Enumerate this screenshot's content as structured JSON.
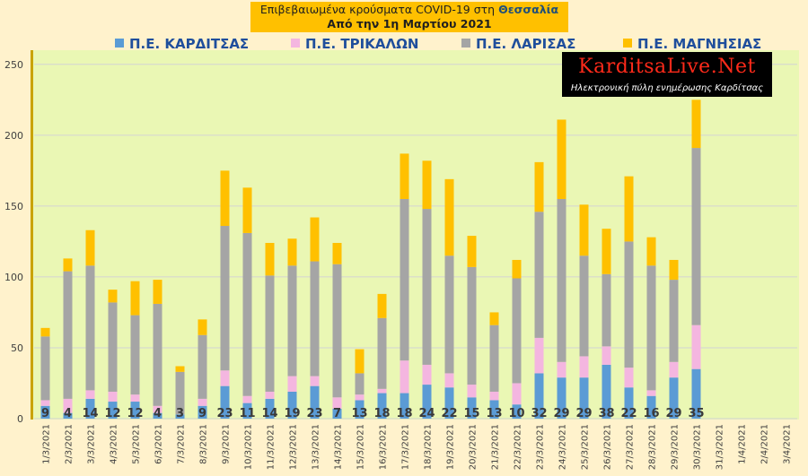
{
  "title_line1_prefix": "Επιβεβαιωμένα κρούσματα COVID-19 στη ",
  "title_line1_region": "Θεσσαλία",
  "title_line2": "Από την 1η Μαρτίου 2021",
  "logo": {
    "brand": "KarditsaLive.Net",
    "tagline": "Ηλεκτρονική πύλη ενημέρωσης Καρδίτσας"
  },
  "chart_data": {
    "type": "bar",
    "stacked": true,
    "ylim": [
      0,
      260
    ],
    "yticks": [
      "0",
      "50",
      "100",
      "150",
      "200",
      "250"
    ],
    "grid": true,
    "legend_position": "top",
    "categories": [
      "1/3/2021",
      "2/3/2021",
      "3/3/2021",
      "4/3/2021",
      "5/3/2021",
      "6/3/2021",
      "7/3/2021",
      "8/3/2021",
      "9/3/2021",
      "10/3/2021",
      "11/3/2021",
      "12/3/2021",
      "13/3/2021",
      "14/3/2021",
      "15/3/2021",
      "16/3/2021",
      "17/3/2021",
      "18/3/2021",
      "19/3/2021",
      "20/3/2021",
      "21/3/2021",
      "22/3/2021",
      "23/3/2021",
      "24/3/2021",
      "25/3/2021",
      "26/3/2021",
      "27/3/2021",
      "28/3/2021",
      "29/3/2021",
      "30/3/2021",
      "31/3/2021",
      "1/4/2021",
      "2/4/2021",
      "3/4/2021"
    ],
    "series": [
      {
        "name": "Π.Ε. ΚΑΡΔΙΤΣΑΣ",
        "color": "#5b9bd5",
        "values": [
          9,
          4,
          14,
          12,
          12,
          4,
          3,
          9,
          23,
          11,
          14,
          19,
          23,
          7,
          13,
          18,
          18,
          24,
          22,
          15,
          13,
          10,
          32,
          29,
          29,
          38,
          22,
          16,
          29,
          35,
          0,
          0,
          0,
          0
        ]
      },
      {
        "name": "Π.Ε. ΤΡΙΚΑΛΩΝ",
        "color": "#f4b6e0",
        "values": [
          4,
          10,
          6,
          7,
          5,
          5,
          0,
          5,
          11,
          5,
          5,
          11,
          7,
          8,
          4,
          3,
          23,
          14,
          10,
          9,
          6,
          15,
          25,
          11,
          15,
          13,
          14,
          4,
          11,
          31,
          0,
          0,
          0,
          0
        ]
      },
      {
        "name": "Π.Ε. ΛΑΡΙΣΑΣ",
        "color": "#a5a5a5",
        "values": [
          45,
          90,
          88,
          63,
          56,
          72,
          30,
          45,
          102,
          115,
          82,
          78,
          81,
          94,
          15,
          50,
          114,
          110,
          83,
          83,
          47,
          74,
          89,
          115,
          71,
          51,
          89,
          88,
          58,
          125,
          0,
          0,
          0,
          0
        ]
      },
      {
        "name": "Π.Ε. ΜΑΓΝΗΣΙΑΣ",
        "color": "#ffc000",
        "values": [
          6,
          9,
          25,
          9,
          24,
          17,
          4,
          11,
          39,
          32,
          23,
          19,
          31,
          15,
          17,
          17,
          32,
          34,
          54,
          22,
          9,
          13,
          35,
          56,
          36,
          32,
          46,
          20,
          14,
          34,
          0,
          0,
          0,
          0
        ]
      }
    ],
    "data_labels": [
      "9",
      "4",
      "14",
      "12",
      "12",
      "4",
      "3",
      "9",
      "23",
      "11",
      "14",
      "19",
      "23",
      "7",
      "13",
      "18",
      "18",
      "24",
      "22",
      "15",
      "13",
      "10",
      "32",
      "29",
      "29",
      "38",
      "22",
      "16",
      "29",
      "35",
      "",
      "",
      "",
      ""
    ]
  }
}
